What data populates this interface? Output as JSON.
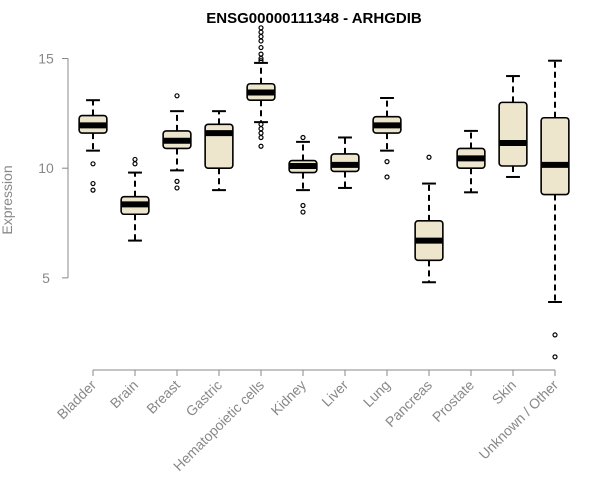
{
  "chart_data": {
    "type": "box",
    "title": "ENSG00000111348 - ARHGDIB",
    "ylabel": "Expression",
    "xlabel": "",
    "ylim": [
      0.8,
      16.3
    ],
    "yticks": [
      5,
      10,
      15
    ],
    "box_fill": "#ede6cd",
    "categories": [
      "Bladder",
      "Brain",
      "Breast",
      "Gastric",
      "Hematopoietic cells",
      "Kidney",
      "Liver",
      "Lung",
      "Pancreas",
      "Prostate",
      "Skin",
      "Unknown / Other"
    ],
    "boxes": [
      {
        "category": "Bladder",
        "whisker_low": 10.8,
        "q1": 11.6,
        "median": 11.95,
        "q3": 12.4,
        "whisker_high": 13.1,
        "outliers": [
          10.2,
          9.3,
          9.0
        ]
      },
      {
        "category": "Brain",
        "whisker_low": 6.7,
        "q1": 7.9,
        "median": 8.35,
        "q3": 8.7,
        "whisker_high": 9.8,
        "outliers": [
          10.4,
          10.2
        ]
      },
      {
        "category": "Breast",
        "whisker_low": 9.9,
        "q1": 10.9,
        "median": 11.25,
        "q3": 11.7,
        "whisker_high": 12.6,
        "outliers": [
          13.3,
          9.4,
          9.1
        ]
      },
      {
        "category": "Gastric",
        "whisker_low": 9.0,
        "q1": 10.0,
        "median": 11.6,
        "q3": 12.0,
        "whisker_high": 12.6,
        "outliers": []
      },
      {
        "category": "Hematopoietic cells",
        "whisker_low": 12.1,
        "q1": 13.1,
        "median": 13.45,
        "q3": 13.85,
        "whisker_high": 14.8,
        "outliers": [
          16.4,
          16.2,
          16.0,
          15.8,
          15.5,
          15.2,
          15.0,
          14.9,
          12.0,
          11.8,
          11.6,
          11.4,
          11.0
        ]
      },
      {
        "category": "Kidney",
        "whisker_low": 9.0,
        "q1": 9.8,
        "median": 10.1,
        "q3": 10.35,
        "whisker_high": 11.2,
        "outliers": [
          11.4,
          8.3,
          8.0
        ]
      },
      {
        "category": "Liver",
        "whisker_low": 9.1,
        "q1": 9.85,
        "median": 10.15,
        "q3": 10.65,
        "whisker_high": 11.4,
        "outliers": []
      },
      {
        "category": "Lung",
        "whisker_low": 10.8,
        "q1": 11.6,
        "median": 11.95,
        "q3": 12.35,
        "whisker_high": 13.2,
        "outliers": [
          10.3,
          9.6
        ]
      },
      {
        "category": "Pancreas",
        "whisker_low": 4.8,
        "q1": 5.8,
        "median": 6.7,
        "q3": 7.6,
        "whisker_high": 9.3,
        "outliers": [
          10.5
        ]
      },
      {
        "category": "Prostate",
        "whisker_low": 8.9,
        "q1": 10.0,
        "median": 10.45,
        "q3": 10.9,
        "whisker_high": 11.7,
        "outliers": []
      },
      {
        "category": "Skin",
        "whisker_low": 9.6,
        "q1": 10.1,
        "median": 11.15,
        "q3": 13.0,
        "whisker_high": 14.2,
        "outliers": []
      },
      {
        "category": "Unknown / Other",
        "whisker_low": 3.9,
        "q1": 8.8,
        "median": 10.15,
        "q3": 12.3,
        "whisker_high": 14.9,
        "outliers": [
          2.4,
          1.4
        ]
      }
    ]
  }
}
